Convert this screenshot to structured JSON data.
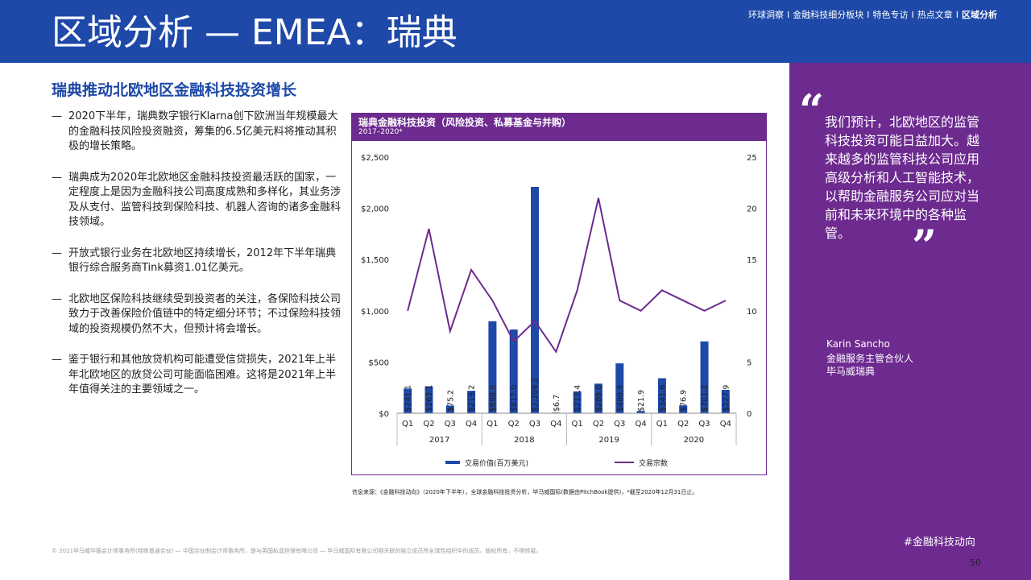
{
  "header": {
    "title": "区域分析 — EMEA：瑞典",
    "nav": [
      {
        "label": "环球洞察",
        "active": false
      },
      {
        "label": "金融科技细分板块",
        "active": false
      },
      {
        "label": "特色专访",
        "active": false
      },
      {
        "label": "热点文章",
        "active": false
      },
      {
        "label": "区域分析",
        "active": true
      }
    ],
    "nav_separator": "I"
  },
  "section": {
    "heading": "瑞典推动北欧地区金融科技投资增长",
    "bullet_marker": "—",
    "bullets": [
      "2020下半年，瑞典数字银行Klarna创下欧洲当年规模最大的金融科技风险投资融资，筹集的6.5亿美元料将推动其积极的增长策略。",
      "瑞典成为2020年北欧地区金融科技投资最活跃的国家，一定程度上是因为金融科技公司高度成熟和多样化，其业务涉及从支付、监管科技到保险科技、机器人咨询的诸多金融科技领域。",
      "开放式银行业务在北欧地区持续增长，2012年下半年瑞典银行综合服务商Tink募资1.01亿美元。",
      "北欧地区保险科技继续受到投资者的关注，各保险科技公司致力于改善保险价值链中的特定细分环节；不过保险科技领域的投资规模仍然不大，但预计将会增长。",
      "鉴于银行和其他放贷机构可能遭受信贷损失，2021年上半年北欧地区的放贷公司可能面临困难。这将是2021年上半年值得关注的主要领域之一。"
    ]
  },
  "chart_data": {
    "type": "bar",
    "title": "瑞典金融科技投资（风险投资、私募基金与并购）",
    "subtitle": "2017–2020*",
    "categories": [
      "Q1",
      "Q2",
      "Q3",
      "Q4",
      "Q1",
      "Q2",
      "Q3",
      "Q4",
      "Q1",
      "Q2",
      "Q3",
      "Q4",
      "Q1",
      "Q2",
      "Q3",
      "Q4"
    ],
    "years": [
      "2017",
      "2018",
      "2019",
      "2020"
    ],
    "series": [
      {
        "name": "交易价值(百万美元)",
        "type": "bar",
        "axis": "left",
        "color": "#1e49a8",
        "values": [
          241.1,
          263.1,
          75.2,
          219.2,
          898.0,
          817.0,
          2209.2,
          6.7,
          213.4,
          289.0,
          486.9,
          21.9,
          341.6,
          76.9,
          701.2,
          227.9
        ],
        "labels": [
          "$241.1",
          "$263.1",
          "$75.2",
          "$219.2",
          "$898.0",
          "$817.0",
          "$2,209.2",
          "$6.7",
          "$213.4",
          "$289.0",
          "$486.9",
          "$21.9",
          "$341.6",
          "$76.9",
          "$701.2",
          "$227.9"
        ]
      },
      {
        "name": "交易宗数",
        "type": "line",
        "axis": "right",
        "color": "#6d2a8f",
        "values": [
          10,
          18,
          8,
          14,
          11,
          7,
          9,
          6,
          12,
          21,
          11,
          10,
          12,
          11,
          10,
          11
        ]
      }
    ],
    "y_left": {
      "min": 0,
      "max": 2500,
      "ticks": [
        0,
        500,
        1000,
        1500,
        2000,
        2500
      ],
      "tick_labels": [
        "$0",
        "$500",
        "$1,000",
        "$1,500",
        "$2,000",
        "$2,500"
      ]
    },
    "y_right": {
      "min": 0,
      "max": 25,
      "ticks": [
        0,
        5,
        10,
        15,
        20,
        25
      ],
      "tick_labels": [
        "0",
        "5",
        "10",
        "15",
        "20",
        "25"
      ]
    },
    "grid": false,
    "legend_position": "bottom"
  },
  "source": "信息来源：《金融科技动向》（2020年下半年），全球金融科技投资分析，毕马威国际(数据由PitchBook提供)，*截至2020年12月31日止。",
  "footer": "© 2021毕马威华振会计师事务所(特殊普通合伙) — 中国合伙制会计师事务所，是与英国私营担保有限公司 — 毕马威国际有限公司相关联的独立成员所全球性组织中的成员。版权所有，不得转载。",
  "sidebar": {
    "quote_open": "“",
    "quote_close": "”",
    "quote": "我们预计，北欧地区的监管科技投资可能日益加大。越来越多的监管科技公司应用高级分析和人工智能技术，以帮助金融服务公司应对当前和未来环境中的各种监管。",
    "author_name": "Karin Sancho",
    "author_role1": "金融服务主管合伙人",
    "author_role2": "毕马威瑞典",
    "hashtag": "#金融科技动向"
  },
  "page_number": "50"
}
